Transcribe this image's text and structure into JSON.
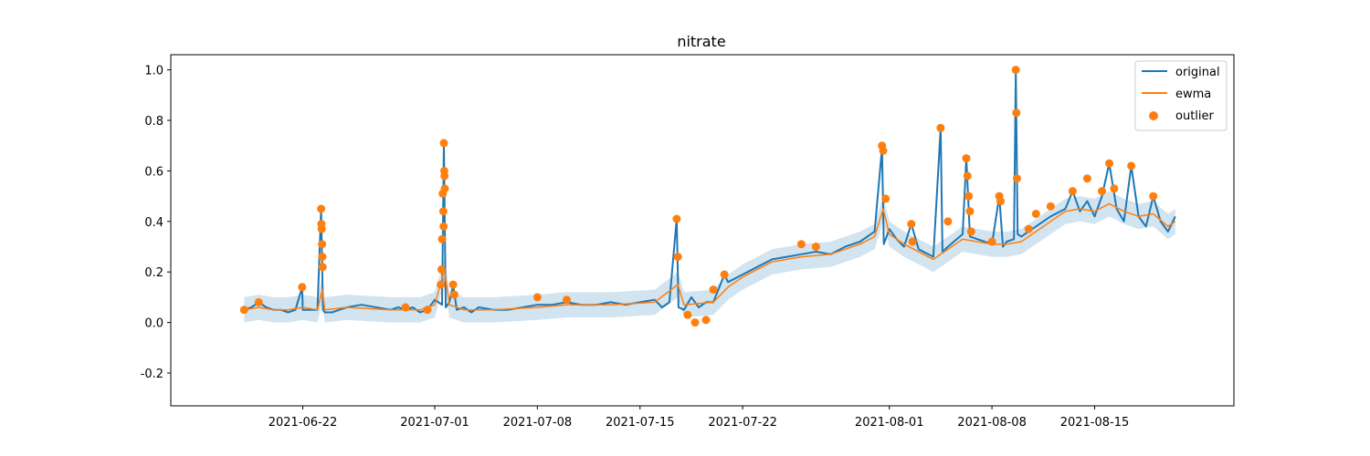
{
  "chart_data": {
    "type": "line",
    "title": "nitrate",
    "xlabel": "",
    "ylabel": "",
    "x_axis": {
      "type": "date",
      "range": [
        "2021-06-13T00:00",
        "2021-08-24T12:00"
      ],
      "ticks": [
        "2021-06-22",
        "2021-07-01",
        "2021-07-08",
        "2021-07-15",
        "2021-07-22",
        "2021-08-01",
        "2021-08-08",
        "2021-08-15"
      ]
    },
    "y_axis": {
      "range": [
        -0.33,
        1.06
      ],
      "ticks": [
        -0.2,
        0.0,
        0.2,
        0.4,
        0.6,
        0.8,
        1.0
      ],
      "tick_labels": [
        "-0.2",
        "0.0",
        "0.2",
        "0.4",
        "0.6",
        "0.8",
        "1.0"
      ]
    },
    "grid": false,
    "legend": {
      "position": "top-right",
      "entries": [
        {
          "label": "original",
          "marker": "line",
          "color": "#1f77b4"
        },
        {
          "label": "ewma",
          "marker": "line",
          "color": "#ff7f0e"
        },
        {
          "label": "outlier",
          "marker": "dot",
          "color": "#ff7f0e"
        }
      ]
    },
    "series": [
      {
        "name": "original",
        "color": "#1f77b4",
        "points": [
          [
            "2021-06-18T00:00",
            0.05
          ],
          [
            "2021-06-18T12:00",
            0.06
          ],
          [
            "2021-06-19T00:00",
            0.08
          ],
          [
            "2021-06-19T12:00",
            0.06
          ],
          [
            "2021-06-20T00:00",
            0.05
          ],
          [
            "2021-06-20T12:00",
            0.05
          ],
          [
            "2021-06-21T00:00",
            0.04
          ],
          [
            "2021-06-21T12:00",
            0.05
          ],
          [
            "2021-06-21T23:00",
            0.14
          ],
          [
            "2021-06-22T00:00",
            0.05
          ],
          [
            "2021-06-23T00:00",
            0.05
          ],
          [
            "2021-06-23T06:00",
            0.45
          ],
          [
            "2021-06-23T09:00",
            0.05
          ],
          [
            "2021-06-23T12:00",
            0.04
          ],
          [
            "2021-06-24T00:00",
            0.04
          ],
          [
            "2021-06-24T12:00",
            0.05
          ],
          [
            "2021-06-25T00:00",
            0.06
          ],
          [
            "2021-06-26T00:00",
            0.07
          ],
          [
            "2021-06-28T00:00",
            0.05
          ],
          [
            "2021-06-28T12:00",
            0.06
          ],
          [
            "2021-06-29T00:00",
            0.05
          ],
          [
            "2021-06-29T12:00",
            0.06
          ],
          [
            "2021-06-30T00:00",
            0.04
          ],
          [
            "2021-06-30T12:00",
            0.05
          ],
          [
            "2021-07-01T00:00",
            0.09
          ],
          [
            "2021-07-01T12:00",
            0.07
          ],
          [
            "2021-07-01T15:00",
            0.71
          ],
          [
            "2021-07-01T18:00",
            0.06
          ],
          [
            "2021-07-02T00:00",
            0.08
          ],
          [
            "2021-07-02T06:00",
            0.15
          ],
          [
            "2021-07-02T12:00",
            0.05
          ],
          [
            "2021-07-03T00:00",
            0.06
          ],
          [
            "2021-07-03T12:00",
            0.04
          ],
          [
            "2021-07-04T00:00",
            0.06
          ],
          [
            "2021-07-05T00:00",
            0.05
          ],
          [
            "2021-07-06T00:00",
            0.05
          ],
          [
            "2021-07-07T00:00",
            0.06
          ],
          [
            "2021-07-08T00:00",
            0.07
          ],
          [
            "2021-07-09T00:00",
            0.07
          ],
          [
            "2021-07-10T00:00",
            0.08
          ],
          [
            "2021-07-11T00:00",
            0.07
          ],
          [
            "2021-07-12T00:00",
            0.07
          ],
          [
            "2021-07-13T00:00",
            0.08
          ],
          [
            "2021-07-14T00:00",
            0.07
          ],
          [
            "2021-07-15T00:00",
            0.08
          ],
          [
            "2021-07-16T00:00",
            0.09
          ],
          [
            "2021-07-16T12:00",
            0.06
          ],
          [
            "2021-07-17T00:00",
            0.08
          ],
          [
            "2021-07-17T12:00",
            0.41
          ],
          [
            "2021-07-17T15:00",
            0.06
          ],
          [
            "2021-07-18T00:00",
            0.05
          ],
          [
            "2021-07-18T12:00",
            0.1
          ],
          [
            "2021-07-19T00:00",
            0.06
          ],
          [
            "2021-07-19T12:00",
            0.08
          ],
          [
            "2021-07-20T00:00",
            0.08
          ],
          [
            "2021-07-20T18:00",
            0.19
          ],
          [
            "2021-07-21T00:00",
            0.16
          ],
          [
            "2021-07-22T00:00",
            0.19
          ],
          [
            "2021-07-23T00:00",
            0.22
          ],
          [
            "2021-07-24T00:00",
            0.25
          ],
          [
            "2021-07-25T00:00",
            0.26
          ],
          [
            "2021-07-26T00:00",
            0.27
          ],
          [
            "2021-07-27T00:00",
            0.28
          ],
          [
            "2021-07-28T00:00",
            0.27
          ],
          [
            "2021-07-29T00:00",
            0.3
          ],
          [
            "2021-07-30T00:00",
            0.32
          ],
          [
            "2021-07-31T00:00",
            0.36
          ],
          [
            "2021-07-31T12:00",
            0.69
          ],
          [
            "2021-07-31T15:00",
            0.31
          ],
          [
            "2021-08-01T00:00",
            0.37
          ],
          [
            "2021-08-01T12:00",
            0.33
          ],
          [
            "2021-08-02T00:00",
            0.3
          ],
          [
            "2021-08-02T12:00",
            0.39
          ],
          [
            "2021-08-03T00:00",
            0.29
          ],
          [
            "2021-08-04T00:00",
            0.26
          ],
          [
            "2021-08-04T12:00",
            0.77
          ],
          [
            "2021-08-04T15:00",
            0.28
          ],
          [
            "2021-08-05T00:00",
            0.3
          ],
          [
            "2021-08-06T00:00",
            0.35
          ],
          [
            "2021-08-06T06:00",
            0.65
          ],
          [
            "2021-08-06T12:00",
            0.34
          ],
          [
            "2021-08-07T00:00",
            0.33
          ],
          [
            "2021-08-08T00:00",
            0.31
          ],
          [
            "2021-08-08T12:00",
            0.5
          ],
          [
            "2021-08-08T18:00",
            0.3
          ],
          [
            "2021-08-09T00:00",
            0.32
          ],
          [
            "2021-08-09T12:00",
            0.33
          ],
          [
            "2021-08-09T15:00",
            1.0
          ],
          [
            "2021-08-09T18:00",
            0.35
          ],
          [
            "2021-08-10T00:00",
            0.34
          ],
          [
            "2021-08-11T00:00",
            0.38
          ],
          [
            "2021-08-12T00:00",
            0.42
          ],
          [
            "2021-08-13T00:00",
            0.45
          ],
          [
            "2021-08-13T12:00",
            0.52
          ],
          [
            "2021-08-14T00:00",
            0.44
          ],
          [
            "2021-08-14T12:00",
            0.48
          ],
          [
            "2021-08-15T00:00",
            0.42
          ],
          [
            "2021-08-15T12:00",
            0.5
          ],
          [
            "2021-08-16T00:00",
            0.63
          ],
          [
            "2021-08-16T12:00",
            0.45
          ],
          [
            "2021-08-17T00:00",
            0.4
          ],
          [
            "2021-08-17T12:00",
            0.62
          ],
          [
            "2021-08-18T00:00",
            0.42
          ],
          [
            "2021-08-18T12:00",
            0.38
          ],
          [
            "2021-08-19T00:00",
            0.5
          ],
          [
            "2021-08-19T12:00",
            0.4
          ],
          [
            "2021-08-20T00:00",
            0.36
          ],
          [
            "2021-08-20T12:00",
            0.42
          ]
        ]
      },
      {
        "name": "ewma",
        "color": "#ff7f0e",
        "points": [
          [
            "2021-06-18T00:00",
            0.05
          ],
          [
            "2021-06-19T00:00",
            0.06
          ],
          [
            "2021-06-20T00:00",
            0.05
          ],
          [
            "2021-06-21T00:00",
            0.05
          ],
          [
            "2021-06-22T00:00",
            0.06
          ],
          [
            "2021-06-23T00:00",
            0.05
          ],
          [
            "2021-06-23T08:00",
            0.13
          ],
          [
            "2021-06-23T12:00",
            0.05
          ],
          [
            "2021-06-25T00:00",
            0.06
          ],
          [
            "2021-06-28T00:00",
            0.05
          ],
          [
            "2021-06-30T00:00",
            0.05
          ],
          [
            "2021-07-01T00:00",
            0.07
          ],
          [
            "2021-07-01T16:00",
            0.21
          ],
          [
            "2021-07-02T00:00",
            0.07
          ],
          [
            "2021-07-03T00:00",
            0.05
          ],
          [
            "2021-07-05T00:00",
            0.05
          ],
          [
            "2021-07-08T00:00",
            0.06
          ],
          [
            "2021-07-10T00:00",
            0.07
          ],
          [
            "2021-07-13T00:00",
            0.07
          ],
          [
            "2021-07-16T00:00",
            0.08
          ],
          [
            "2021-07-17T14:00",
            0.15
          ],
          [
            "2021-07-18T00:00",
            0.07
          ],
          [
            "2021-07-20T00:00",
            0.08
          ],
          [
            "2021-07-21T00:00",
            0.14
          ],
          [
            "2021-07-22T00:00",
            0.18
          ],
          [
            "2021-07-24T00:00",
            0.24
          ],
          [
            "2021-07-26T00:00",
            0.26
          ],
          [
            "2021-07-28T00:00",
            0.27
          ],
          [
            "2021-07-30T00:00",
            0.31
          ],
          [
            "2021-07-31T00:00",
            0.34
          ],
          [
            "2021-07-31T14:00",
            0.45
          ],
          [
            "2021-08-01T00:00",
            0.35
          ],
          [
            "2021-08-02T00:00",
            0.31
          ],
          [
            "2021-08-04T00:00",
            0.25
          ],
          [
            "2021-08-05T00:00",
            0.29
          ],
          [
            "2021-08-06T00:00",
            0.33
          ],
          [
            "2021-08-07T00:00",
            0.32
          ],
          [
            "2021-08-08T00:00",
            0.31
          ],
          [
            "2021-08-09T00:00",
            0.31
          ],
          [
            "2021-08-10T00:00",
            0.32
          ],
          [
            "2021-08-11T00:00",
            0.36
          ],
          [
            "2021-08-12T00:00",
            0.4
          ],
          [
            "2021-08-13T00:00",
            0.44
          ],
          [
            "2021-08-14T00:00",
            0.45
          ],
          [
            "2021-08-15T00:00",
            0.44
          ],
          [
            "2021-08-16T00:00",
            0.47
          ],
          [
            "2021-08-17T00:00",
            0.44
          ],
          [
            "2021-08-18T00:00",
            0.42
          ],
          [
            "2021-08-19T00:00",
            0.43
          ],
          [
            "2021-08-20T00:00",
            0.38
          ],
          [
            "2021-08-20T12:00",
            0.4
          ]
        ]
      },
      {
        "name": "outlier",
        "color": "#ff7f0e",
        "kind": "scatter",
        "points": [
          [
            "2021-06-18T00:00",
            0.05
          ],
          [
            "2021-06-19T00:00",
            0.08
          ],
          [
            "2021-06-21T23:00",
            0.14
          ],
          [
            "2021-06-23T06:00",
            0.45
          ],
          [
            "2021-06-23T06:30",
            0.39
          ],
          [
            "2021-06-23T07:00",
            0.37
          ],
          [
            "2021-06-23T07:30",
            0.31
          ],
          [
            "2021-06-23T08:00",
            0.26
          ],
          [
            "2021-06-23T08:30",
            0.22
          ],
          [
            "2021-06-29T00:00",
            0.06
          ],
          [
            "2021-06-30T12:00",
            0.05
          ],
          [
            "2021-07-01T15:00",
            0.71
          ],
          [
            "2021-07-01T15:30",
            0.6
          ],
          [
            "2021-07-01T16:00",
            0.58
          ],
          [
            "2021-07-01T16:30",
            0.53
          ],
          [
            "2021-07-01T13:00",
            0.51
          ],
          [
            "2021-07-01T14:00",
            0.44
          ],
          [
            "2021-07-01T14:30",
            0.38
          ],
          [
            "2021-07-01T12:00",
            0.33
          ],
          [
            "2021-07-01T11:00",
            0.21
          ],
          [
            "2021-07-01T10:00",
            0.15
          ],
          [
            "2021-07-02T06:00",
            0.15
          ],
          [
            "2021-07-02T08:00",
            0.11
          ],
          [
            "2021-07-08T00:00",
            0.1
          ],
          [
            "2021-07-10T00:00",
            0.09
          ],
          [
            "2021-07-17T12:00",
            0.41
          ],
          [
            "2021-07-17T14:00",
            0.26
          ],
          [
            "2021-07-18T06:00",
            0.03
          ],
          [
            "2021-07-18T18:00",
            0.0
          ],
          [
            "2021-07-19T12:00",
            0.01
          ],
          [
            "2021-07-20T00:00",
            0.13
          ],
          [
            "2021-07-20T18:00",
            0.19
          ],
          [
            "2021-07-26T00:00",
            0.31
          ],
          [
            "2021-07-27T00:00",
            0.3
          ],
          [
            "2021-07-31T12:00",
            0.7
          ],
          [
            "2021-07-31T14:00",
            0.68
          ],
          [
            "2021-07-31T18:00",
            0.49
          ],
          [
            "2021-08-02T12:00",
            0.39
          ],
          [
            "2021-08-02T14:00",
            0.32
          ],
          [
            "2021-08-04T12:00",
            0.77
          ],
          [
            "2021-08-05T00:00",
            0.4
          ],
          [
            "2021-08-06T06:00",
            0.65
          ],
          [
            "2021-08-06T08:00",
            0.58
          ],
          [
            "2021-08-06T10:00",
            0.5
          ],
          [
            "2021-08-06T12:00",
            0.44
          ],
          [
            "2021-08-06T14:00",
            0.36
          ],
          [
            "2021-08-08T12:00",
            0.5
          ],
          [
            "2021-08-08T14:00",
            0.48
          ],
          [
            "2021-08-08T00:00",
            0.32
          ],
          [
            "2021-08-09T15:00",
            1.0
          ],
          [
            "2021-08-09T16:00",
            0.83
          ],
          [
            "2021-08-09T17:00",
            0.57
          ],
          [
            "2021-08-10T12:00",
            0.37
          ],
          [
            "2021-08-11T00:00",
            0.43
          ],
          [
            "2021-08-12T00:00",
            0.46
          ],
          [
            "2021-08-13T12:00",
            0.52
          ],
          [
            "2021-08-14T12:00",
            0.57
          ],
          [
            "2021-08-15T12:00",
            0.52
          ],
          [
            "2021-08-16T00:00",
            0.63
          ],
          [
            "2021-08-16T08:00",
            0.53
          ],
          [
            "2021-08-17T12:00",
            0.62
          ],
          [
            "2021-08-19T00:00",
            0.5
          ]
        ]
      }
    ]
  }
}
